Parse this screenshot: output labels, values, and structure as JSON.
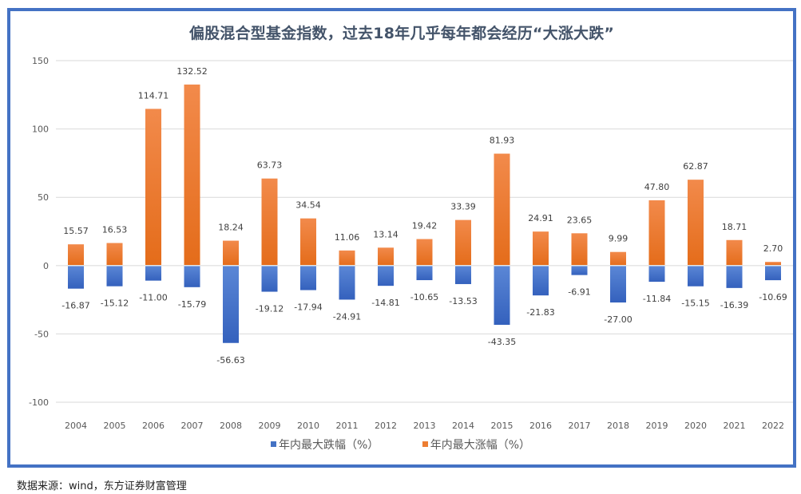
{
  "title": "偏股混合型基金指数，过去18年几乎每年都会经历“大涨大跌”",
  "source": "数据来源：wind，东方证券财富管理",
  "colors": {
    "frame": "#4472c4",
    "rise_top": "#f28a4b",
    "rise_bottom": "#e46c1a",
    "fall_top": "#5b87d6",
    "fall_bottom": "#3461bd",
    "grid": "#d9d9d9"
  },
  "chart_data": {
    "type": "bar",
    "title": "偏股混合型基金指数，过去18年几乎每年都会经历“大涨大跌”",
    "xlabel": "",
    "ylabel": "",
    "ylim": [
      -100,
      150
    ],
    "yticks": [
      150,
      100,
      50,
      0,
      -50,
      -100
    ],
    "grid": true,
    "legend_position": "bottom",
    "stacked_overlap": true,
    "categories": [
      "2004",
      "2005",
      "2006",
      "2007",
      "2008",
      "2009",
      "2010",
      "2011",
      "2012",
      "2013",
      "2014",
      "2015",
      "2016",
      "2017",
      "2018",
      "2019",
      "2020",
      "2021",
      "2022"
    ],
    "series": [
      {
        "name": "年内最大跌幅（%）",
        "color": "#4472c4",
        "values": [
          -16.87,
          -15.12,
          -11.0,
          -15.79,
          -56.63,
          -19.12,
          -17.94,
          -24.91,
          -14.81,
          -10.65,
          -13.53,
          -43.35,
          -21.83,
          -6.91,
          -27.0,
          -11.84,
          -15.15,
          -16.39,
          -10.69
        ],
        "labels": [
          "-16.87",
          "-15.12",
          "-11.00",
          "-15.79",
          "-56.63",
          "-19.12",
          "-17.94",
          "-24.91",
          "-14.81",
          "-10.65",
          "-13.53",
          "-43.35",
          "-21.83",
          "-6.91",
          "-27.00",
          "-11.84",
          "-15.15",
          "-16.39",
          "-10.69"
        ]
      },
      {
        "name": "年内最大涨幅（%）",
        "color": "#ed7d31",
        "values": [
          15.57,
          16.53,
          114.71,
          132.52,
          18.24,
          63.73,
          34.54,
          11.06,
          13.14,
          19.42,
          33.39,
          81.93,
          24.91,
          23.65,
          9.99,
          47.8,
          62.87,
          18.71,
          2.7
        ],
        "labels": [
          "15.57",
          "16.53",
          "114.71",
          "132.52",
          "18.24",
          "63.73",
          "34.54",
          "11.06",
          "13.14",
          "19.42",
          "33.39",
          "81.93",
          "24.91",
          "23.65",
          "9.99",
          "47.80",
          "62.87",
          "18.71",
          "2.70"
        ]
      }
    ]
  }
}
